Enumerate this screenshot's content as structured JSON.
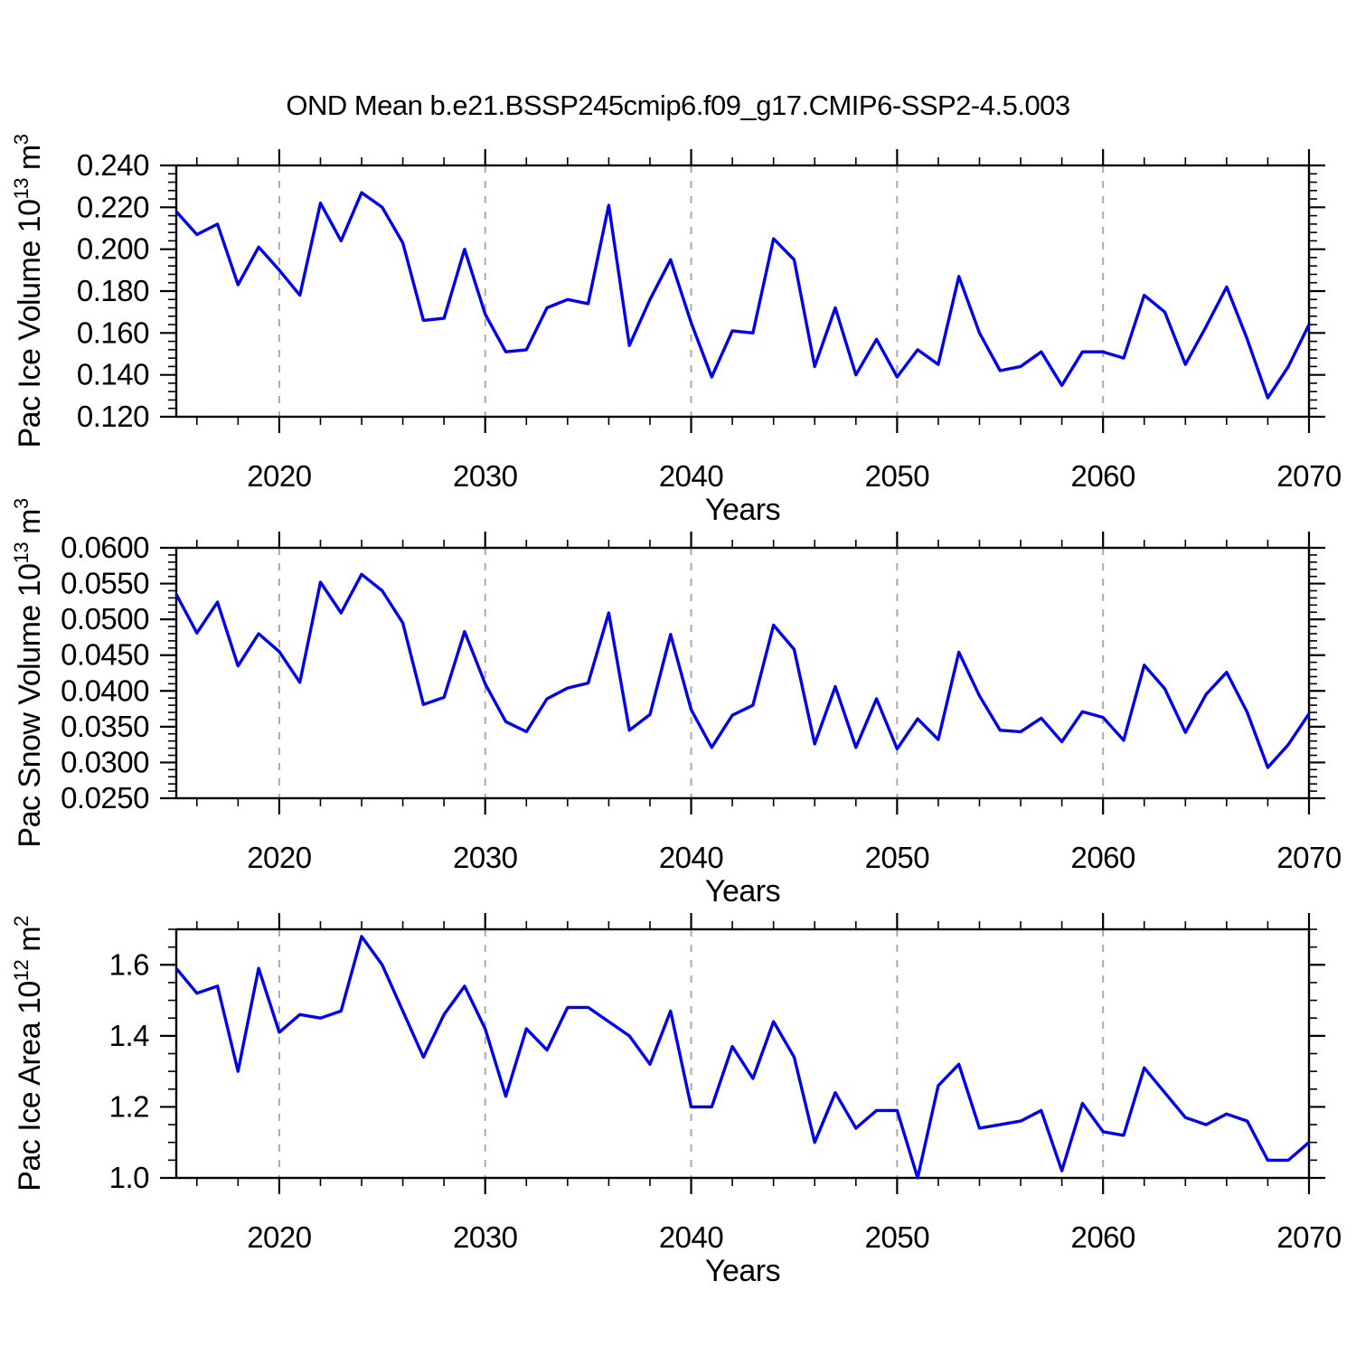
{
  "title": "OND Mean b.e21.BSSP245cmip6.f09_g17.CMIP6-SSP2-4.5.003",
  "colors": {
    "line": "#0000ee",
    "grid": "#aaaaaa",
    "frame": "#000000",
    "background": "#ffffff"
  },
  "x_axis": {
    "label": "Years",
    "tick_labels": [
      "2020",
      "2030",
      "2040",
      "2050",
      "2060",
      "2070"
    ],
    "xlim": [
      2015,
      2070
    ],
    "major_step": 10,
    "minor_step": 2,
    "grid_years": [
      2020,
      2030,
      2040,
      2050,
      2060
    ]
  },
  "years": [
    2015,
    2016,
    2017,
    2018,
    2019,
    2020,
    2021,
    2022,
    2023,
    2024,
    2025,
    2026,
    2027,
    2028,
    2029,
    2030,
    2031,
    2032,
    2033,
    2034,
    2035,
    2036,
    2037,
    2038,
    2039,
    2040,
    2041,
    2042,
    2043,
    2044,
    2045,
    2046,
    2047,
    2048,
    2049,
    2050,
    2051,
    2052,
    2053,
    2054,
    2055,
    2056,
    2057,
    2058,
    2059,
    2060,
    2061,
    2062,
    2063,
    2064,
    2065,
    2066,
    2067,
    2068,
    2069,
    2070
  ],
  "chart_data": [
    {
      "id": "pac-ice-volume",
      "type": "line",
      "ylabel": "Pac Ice Volume 10^13^ m^3^",
      "xlabel": "Years",
      "ylim": [
        0.12,
        0.24
      ],
      "ylabel_max": 0.24,
      "ytick_major": 0.02,
      "ytick_minor": 0.004,
      "ytick_decimals": 3,
      "grid": "x-dashed",
      "legend": "none",
      "values": [
        0.218,
        0.207,
        0.212,
        0.183,
        0.201,
        0.19,
        0.178,
        0.222,
        0.204,
        0.227,
        0.22,
        0.203,
        0.166,
        0.167,
        0.2,
        0.169,
        0.151,
        0.152,
        0.172,
        0.176,
        0.174,
        0.221,
        0.154,
        0.176,
        0.195,
        0.165,
        0.139,
        0.161,
        0.16,
        0.205,
        0.195,
        0.144,
        0.172,
        0.14,
        0.157,
        0.139,
        0.152,
        0.145,
        0.187,
        0.16,
        0.142,
        0.144,
        0.151,
        0.135,
        0.151,
        0.151,
        0.148,
        0.178,
        0.17,
        0.145,
        0.163,
        0.182,
        0.157,
        0.129,
        0.144,
        0.164
      ]
    },
    {
      "id": "pac-snow-volume",
      "type": "line",
      "ylabel": "Pac Snow Volume 10^13^ m^3^",
      "xlabel": "Years",
      "ylim": [
        0.025,
        0.06
      ],
      "ylabel_max": 0.06,
      "ytick_major": 0.005,
      "ytick_minor": 0.001,
      "ytick_decimals": 4,
      "grid": "x-dashed",
      "legend": "none",
      "values": [
        0.0535,
        0.0481,
        0.0524,
        0.0435,
        0.048,
        0.0455,
        0.0412,
        0.0552,
        0.0509,
        0.0563,
        0.054,
        0.0495,
        0.0381,
        0.0391,
        0.0483,
        0.041,
        0.0357,
        0.0343,
        0.0389,
        0.0404,
        0.0411,
        0.0509,
        0.0345,
        0.0367,
        0.0479,
        0.0374,
        0.0321,
        0.0366,
        0.038,
        0.0492,
        0.0458,
        0.0326,
        0.0406,
        0.0321,
        0.0389,
        0.0319,
        0.0361,
        0.0332,
        0.0454,
        0.0393,
        0.0345,
        0.0343,
        0.0362,
        0.0329,
        0.0371,
        0.0363,
        0.0331,
        0.0436,
        0.0403,
        0.0342,
        0.0395,
        0.0426,
        0.037,
        0.0293,
        0.0325,
        0.0368
      ]
    },
    {
      "id": "pac-ice-area",
      "type": "line",
      "ylabel": "Pac Ice Area 10^12^ m^2^",
      "xlabel": "Years",
      "ylim": [
        1.0,
        1.7
      ],
      "ylabel_max": 1.6,
      "ytick_major": 0.2,
      "ytick_minor": 0.05,
      "ytick_decimals": 1,
      "grid": "x-dashed",
      "legend": "none",
      "values": [
        1.59,
        1.52,
        1.54,
        1.3,
        1.59,
        1.41,
        1.46,
        1.45,
        1.47,
        1.68,
        1.6,
        1.47,
        1.34,
        1.46,
        1.54,
        1.42,
        1.23,
        1.42,
        1.36,
        1.48,
        1.48,
        1.44,
        1.4,
        1.32,
        1.47,
        1.2,
        1.2,
        1.37,
        1.28,
        1.44,
        1.34,
        1.1,
        1.24,
        1.14,
        1.19,
        1.19,
        1.0,
        1.26,
        1.32,
        1.14,
        1.15,
        1.16,
        1.19,
        1.02,
        1.21,
        1.13,
        1.12,
        1.31,
        1.24,
        1.17,
        1.15,
        1.18,
        1.16,
        1.05,
        1.05,
        1.1
      ]
    }
  ]
}
